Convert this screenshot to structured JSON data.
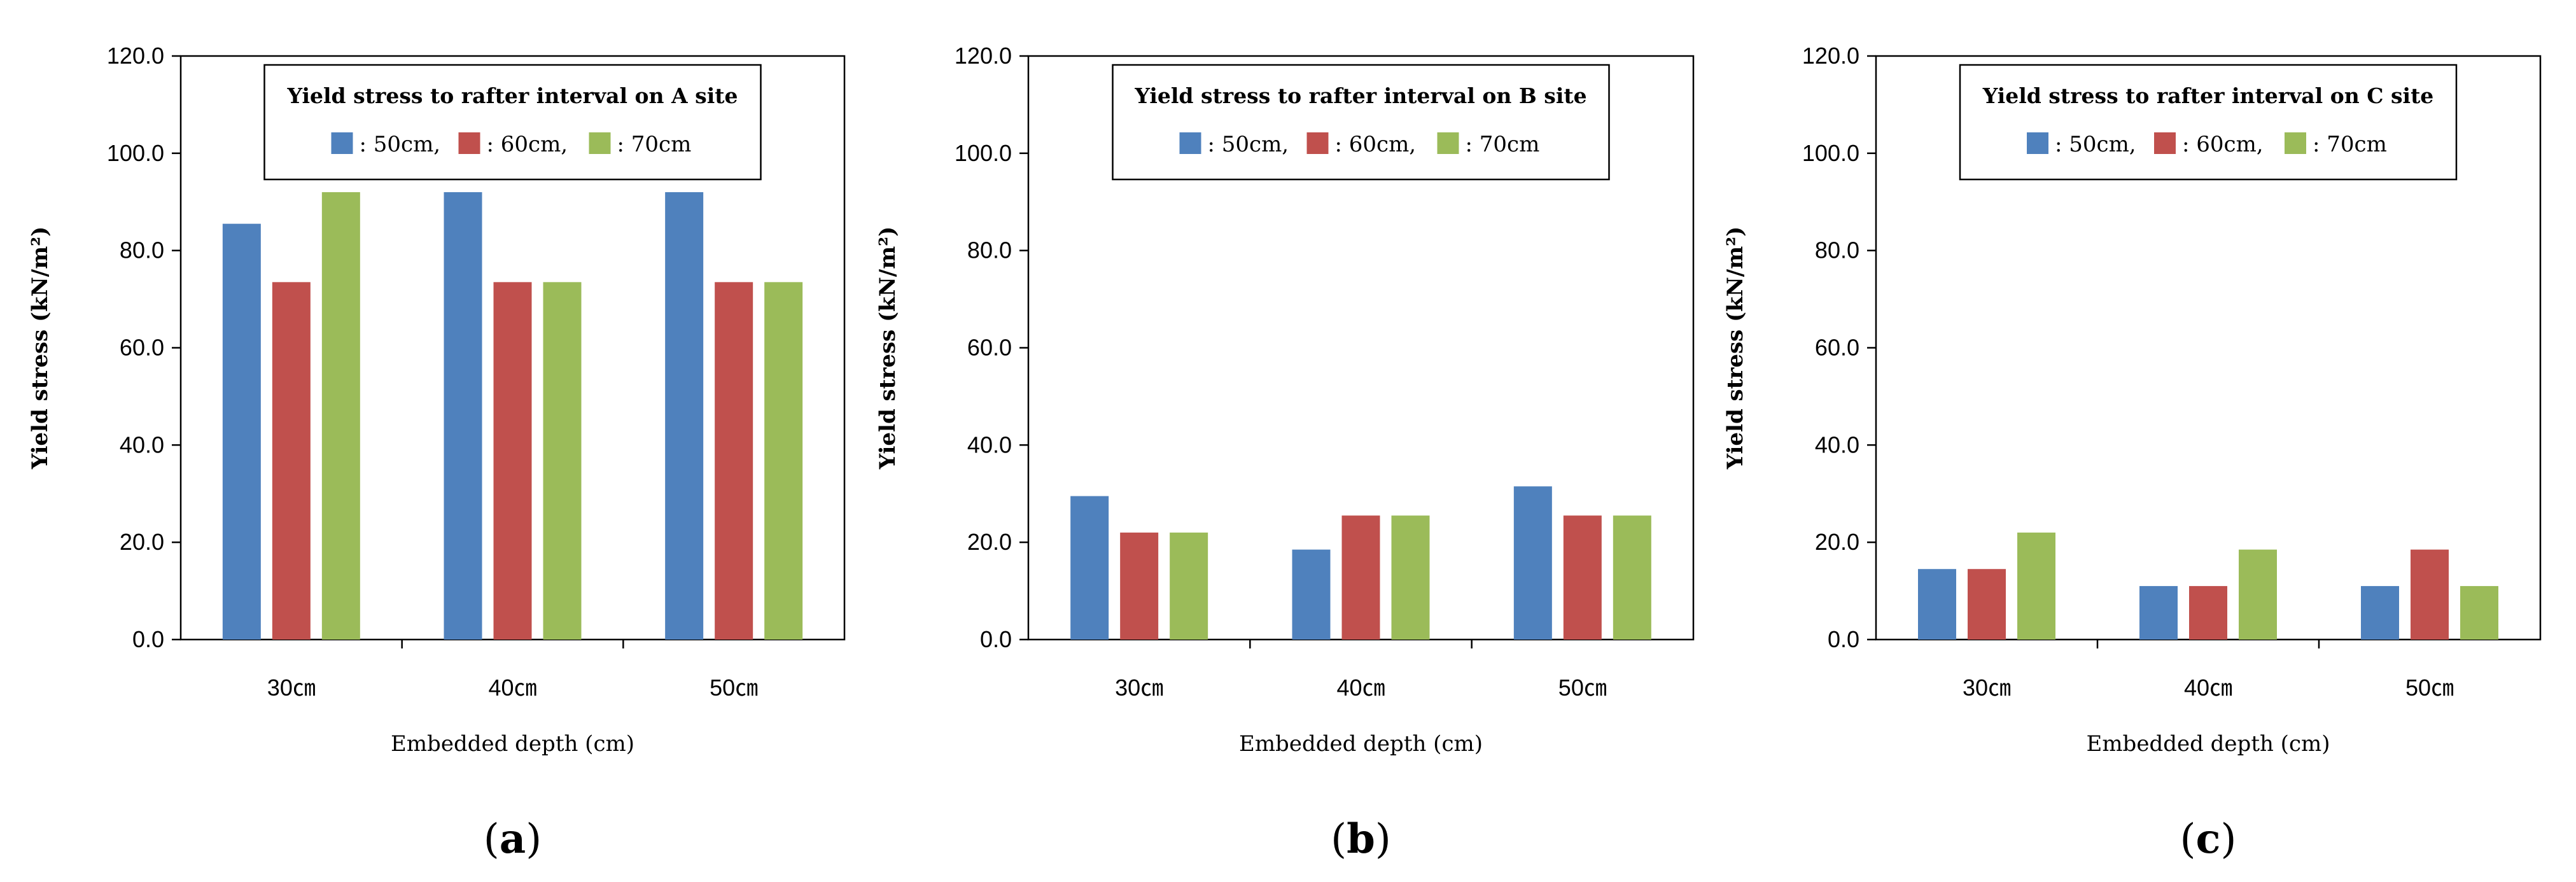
{
  "chart_data": [
    {
      "type": "bar",
      "panel_label": "a",
      "legend_title": "Yield stress to rafter interval on A site",
      "xlabel": "Embedded depth (cm)",
      "ylabel": "Yield stress (kN/m²)",
      "ylim": [
        0,
        120
      ],
      "yticks": [
        "0.0",
        "20.0",
        "40.0",
        "60.0",
        "80.0",
        "100.0",
        "120.0"
      ],
      "categories": [
        "30㎝",
        "40㎝",
        "50㎝"
      ],
      "series": [
        {
          "name": ": 50cm,",
          "color": "#4f81bd",
          "values": [
            85.5,
            92.0,
            92.0
          ]
        },
        {
          "name": ": 60cm,",
          "color": "#c0504d",
          "values": [
            73.5,
            73.5,
            73.5
          ]
        },
        {
          "name": ": 70cm",
          "color": "#9bbb59",
          "values": [
            92.0,
            73.5,
            73.5
          ]
        }
      ],
      "grid": false,
      "legend_placement": "top-center"
    },
    {
      "type": "bar",
      "panel_label": "b",
      "legend_title": "Yield stress to rafter interval on B site",
      "xlabel": "Embedded depth (cm)",
      "ylabel": "Yield stress (kN/m²)",
      "ylim": [
        0,
        120
      ],
      "yticks": [
        "0.0",
        "20.0",
        "40.0",
        "60.0",
        "80.0",
        "100.0",
        "120.0"
      ],
      "categories": [
        "30㎝",
        "40㎝",
        "50㎝"
      ],
      "series": [
        {
          "name": ": 50cm,",
          "color": "#4f81bd",
          "values": [
            29.5,
            18.5,
            31.5
          ]
        },
        {
          "name": ": 60cm,",
          "color": "#c0504d",
          "values": [
            22.0,
            25.5,
            25.5
          ]
        },
        {
          "name": ": 70cm",
          "color": "#9bbb59",
          "values": [
            22.0,
            25.5,
            25.5
          ]
        }
      ],
      "grid": false,
      "legend_placement": "top-center"
    },
    {
      "type": "bar",
      "panel_label": "c",
      "legend_title": "Yield stress to rafter interval on C site",
      "xlabel": "Embedded depth (cm)",
      "ylabel": "Yield stress (kN/m²)",
      "ylim": [
        0,
        120
      ],
      "yticks": [
        "0.0",
        "20.0",
        "40.0",
        "60.0",
        "80.0",
        "100.0",
        "120.0"
      ],
      "categories": [
        "30㎝",
        "40㎝",
        "50㎝"
      ],
      "series": [
        {
          "name": ": 50cm,",
          "color": "#4f81bd",
          "values": [
            14.5,
            11.0,
            11.0
          ]
        },
        {
          "name": ": 60cm,",
          "color": "#c0504d",
          "values": [
            14.5,
            11.0,
            18.5
          ]
        },
        {
          "name": ": 70cm",
          "color": "#9bbb59",
          "values": [
            22.0,
            18.5,
            11.0
          ]
        }
      ],
      "grid": false,
      "legend_placement": "top-center"
    }
  ]
}
